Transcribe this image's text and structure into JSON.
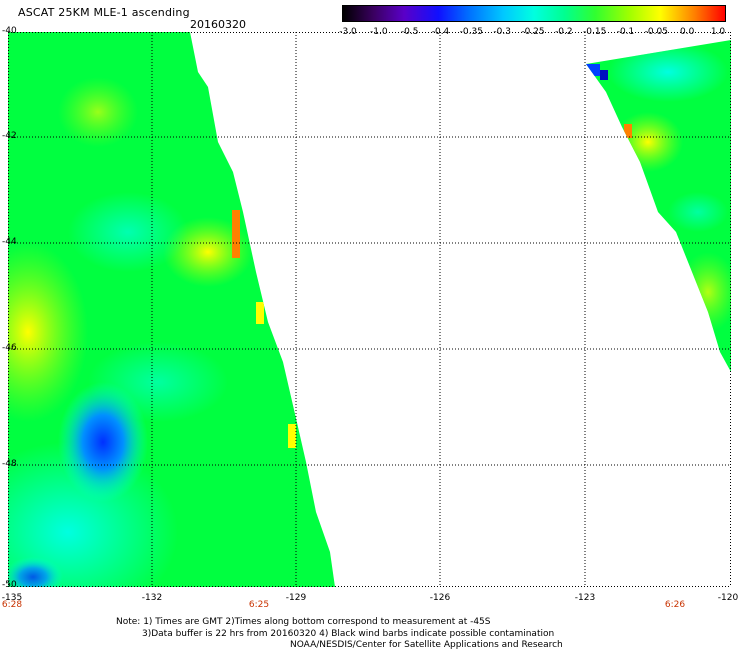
{
  "header": {
    "title": "ASCAT 25KM MLE-1 ascending",
    "date": "20160320"
  },
  "colorbar": {
    "ticks": [
      "-3.0",
      "-1.0",
      "-0.5",
      "-0.4",
      "-0.35",
      "-0.3",
      "-0.25",
      "-0.2",
      "-0.15",
      "-0.1",
      "-0.05",
      "0.0",
      "1.0"
    ],
    "colors": [
      "#000000",
      "#3a0060",
      "#5a00c8",
      "#1010ff",
      "#0070ff",
      "#00c8ff",
      "#00ffe0",
      "#00ff90",
      "#30ff30",
      "#a0ff00",
      "#ffff00",
      "#ff8000",
      "#ff0000"
    ]
  },
  "map": {
    "lat_labels": [
      "-40",
      "-42",
      "-44",
      "-46",
      "-48",
      "-50"
    ],
    "lon_labels": [
      "-135",
      "-132",
      "-129",
      "-126",
      "-123",
      "-120"
    ],
    "time_labels": [
      "6:28",
      "6:25",
      "6:26"
    ],
    "swath_colors": {
      "base_green": "#00ff40",
      "cyan": "#00ffe0",
      "yellow_green": "#a0ff00",
      "yellow": "#ffff00",
      "orange": "#ff8000",
      "blue": "#0040ff"
    }
  },
  "notes": {
    "line1": "Note: 1) Times are GMT 2)Times along bottom correspond to measurement at -45S",
    "line2": "3)Data buffer is 22 hrs from 20160320 4) Black wind barbs indicate possible contamination",
    "line3": "NOAA/NESDIS/Center for Satellite Applications and Research"
  }
}
